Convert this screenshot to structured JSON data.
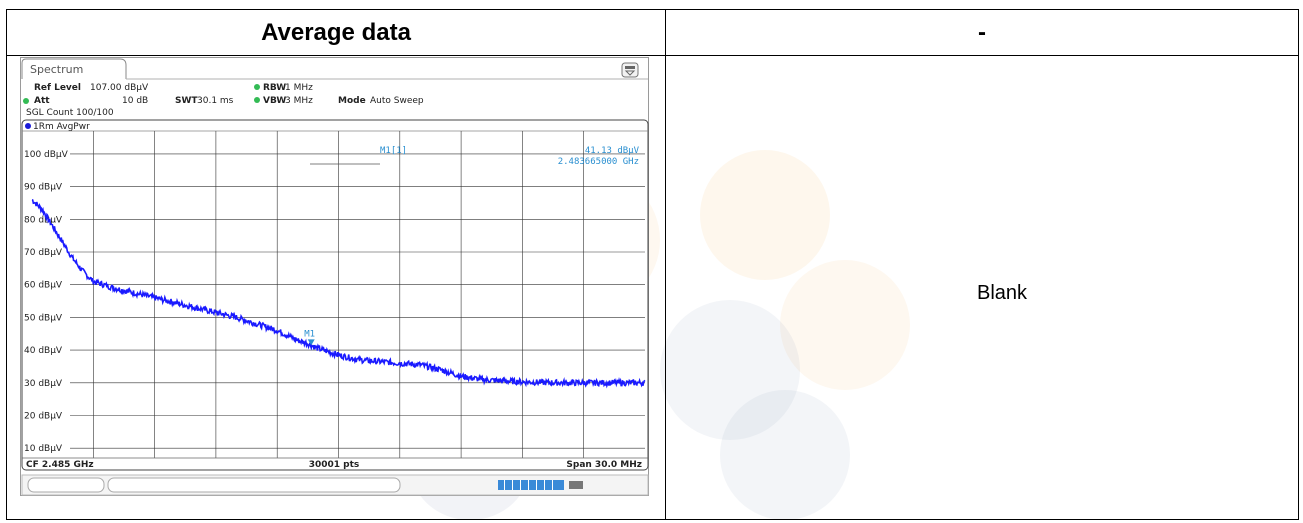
{
  "table": {
    "header_left": "Average data",
    "header_right": "-",
    "right_cell_text": "Blank"
  },
  "chart_data": {
    "type": "line",
    "tab_title": "Spectrum",
    "settings": {
      "ref_level_label": "Ref Level",
      "ref_level_value": "107.00 dBµV",
      "att_label": "Att",
      "att_value": "10 dB",
      "swt_label": "SWT",
      "swt_value": "30.1 ms",
      "rbw_label": "RBW",
      "rbw_value": "1 MHz",
      "vbw_label": "VBW",
      "vbw_value": "3 MHz",
      "mode_label": "Mode",
      "mode_value": "Auto Sweep",
      "sgl_count": "SGL Count 100/100"
    },
    "trace_label": "1Rm AvgPwr",
    "marker": {
      "label": "M1",
      "header": "M1[1]",
      "level": "41.13 dBµV",
      "freq": "2.483665000 GHz",
      "x": 2.483665,
      "y": 41.13
    },
    "y_tick_labels": [
      "100 dBµV",
      "90 dBµV",
      "80 dBµV",
      "70 dBµV",
      "60 dBµV",
      "50 dBµV",
      "40 dBµV",
      "30 dBµV",
      "20 dBµV",
      "10 dBµV"
    ],
    "y_ticks": [
      100,
      90,
      80,
      70,
      60,
      50,
      40,
      30,
      20,
      10
    ],
    "ylim": [
      7,
      107
    ],
    "xlim": [
      2.47,
      2.5
    ],
    "footer": {
      "left": "CF 2.485 GHz",
      "center": "30001 pts",
      "right": "Span 30.0 MHz"
    },
    "grid": true,
    "series": [
      {
        "color": "#1a1aff",
        "x": [
          2.47,
          2.4705,
          2.471,
          2.4715,
          2.472,
          2.4725,
          2.473,
          2.474,
          2.475,
          2.476,
          2.477,
          2.478,
          2.479,
          2.48,
          2.481,
          2.482,
          2.483,
          2.4835,
          2.484,
          2.485,
          2.486,
          2.487,
          2.488,
          2.489,
          2.49,
          2.491,
          2.492,
          2.493,
          2.494,
          2.495,
          2.496,
          2.497,
          2.498,
          2.499,
          2.5
        ],
        "y": [
          86,
          83,
          78,
          73,
          68,
          64,
          61,
          59,
          57.5,
          56,
          54.5,
          53,
          51.5,
          50,
          48,
          46,
          43,
          42,
          40.5,
          38.5,
          37,
          36.5,
          36,
          35.5,
          34,
          32,
          31,
          30.6,
          30.3,
          30.1,
          30,
          30,
          30,
          30,
          30
        ]
      }
    ]
  }
}
